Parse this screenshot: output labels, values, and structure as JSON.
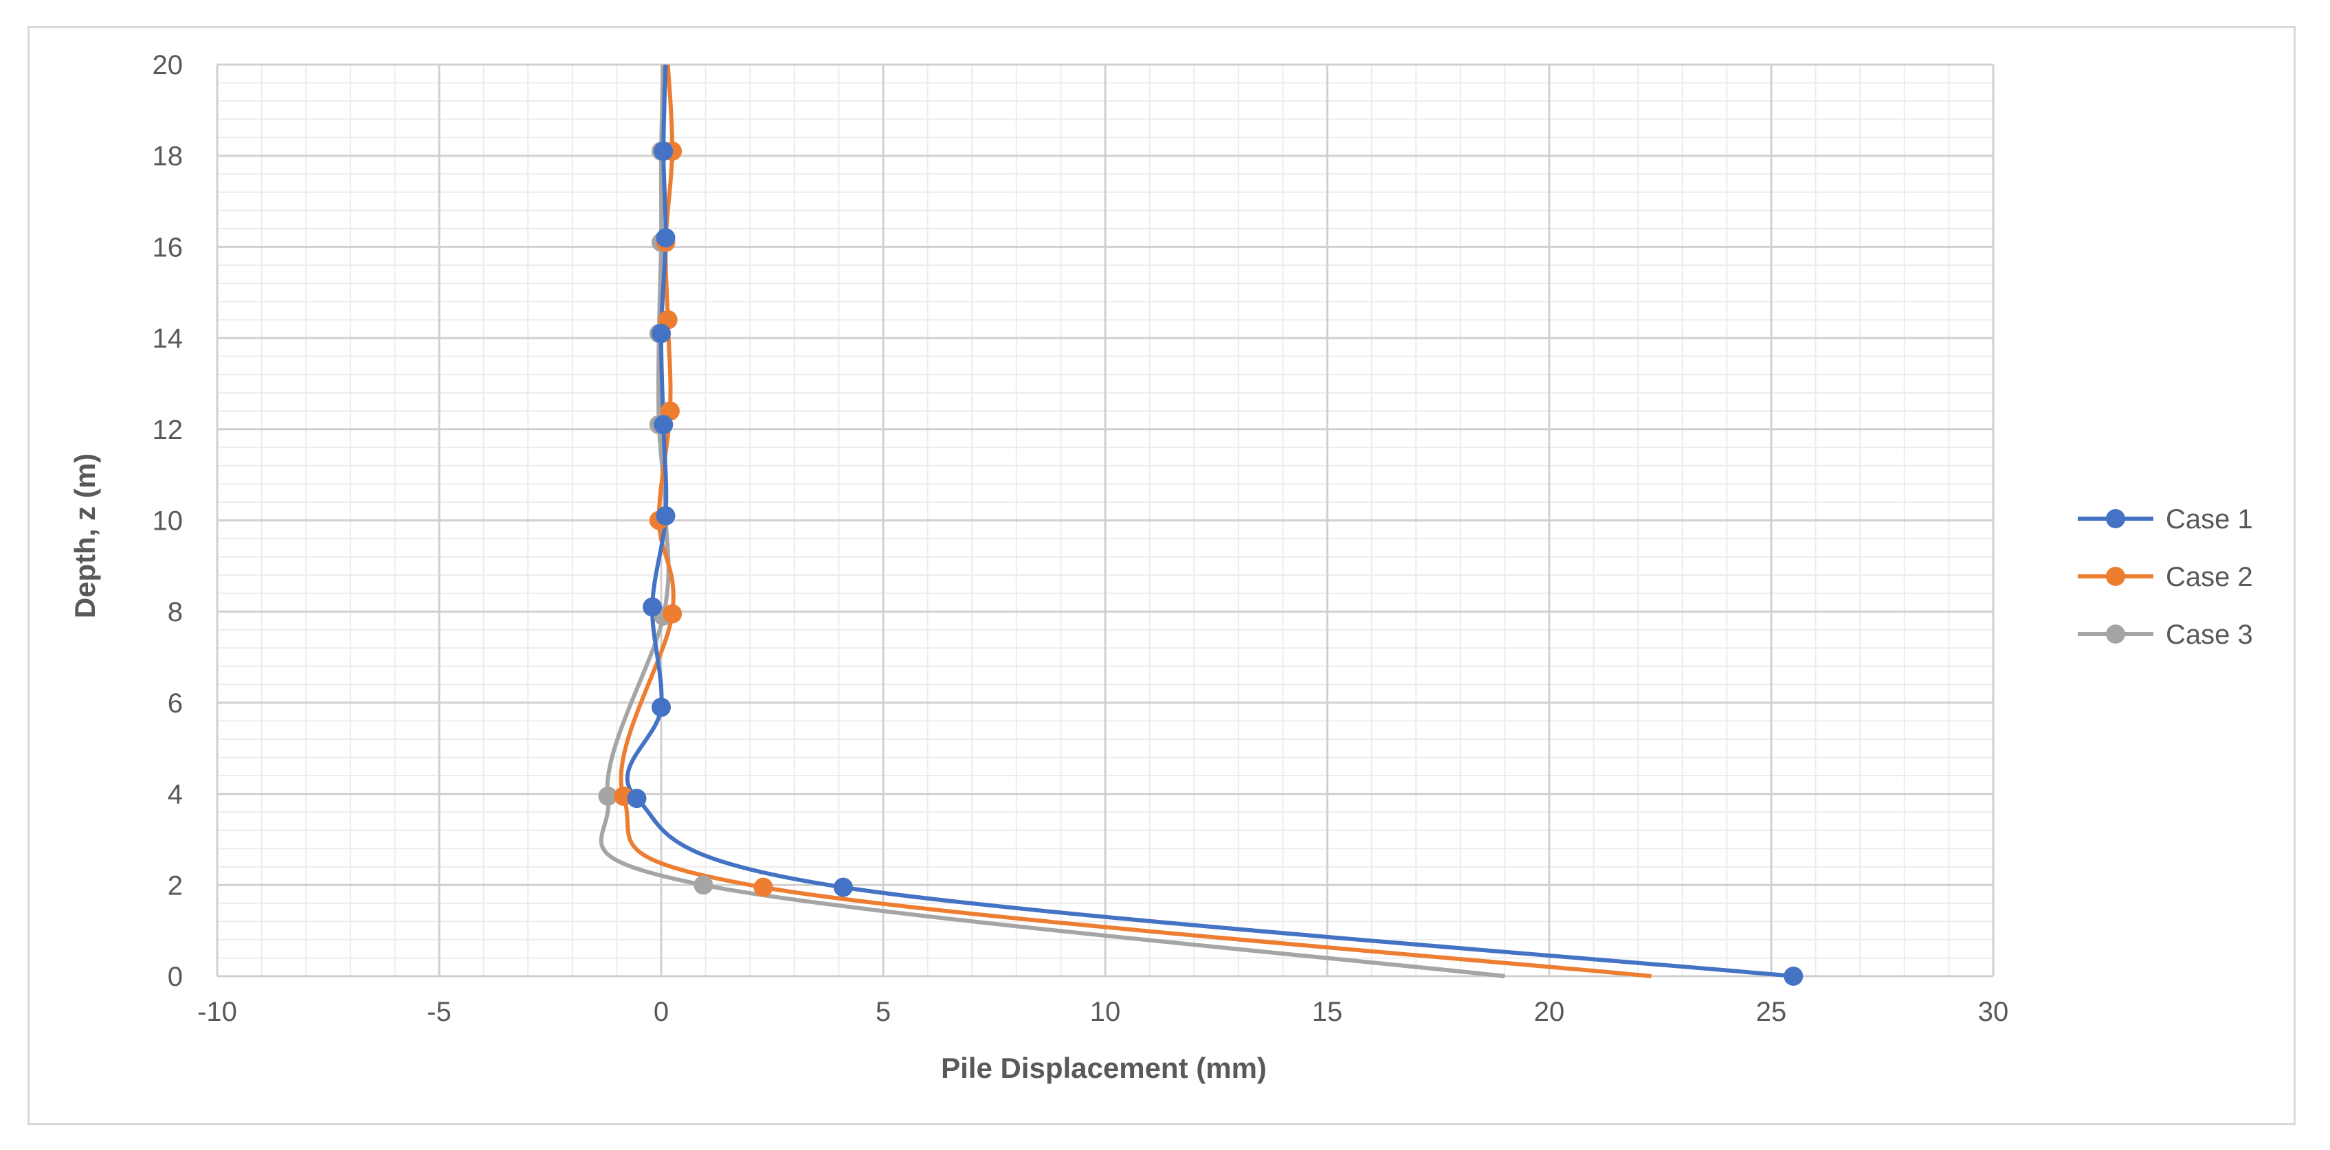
{
  "chart_data": {
    "type": "scatter",
    "xlabel": "Pile Displacement (mm)",
    "ylabel": "Depth, z (m)",
    "xlim": [
      -10,
      30
    ],
    "ylim": [
      0,
      20
    ],
    "x_ticks": [
      "-10",
      "-5",
      "0",
      "5",
      "10",
      "15",
      "20",
      "25",
      "30"
    ],
    "y_ticks": [
      "0",
      "2",
      "4",
      "6",
      "8",
      "10",
      "12",
      "14",
      "16",
      "18",
      "20"
    ],
    "grid": "major and minor",
    "legend_position": "right",
    "series": [
      {
        "name": "Case 1",
        "color": "#4472c4",
        "points": [
          [
            25.5,
            0
          ],
          [
            4.1,
            1.95
          ],
          [
            -0.55,
            3.9
          ],
          [
            0.0,
            5.9
          ],
          [
            -0.2,
            8.1
          ],
          [
            0.1,
            10.1
          ],
          [
            0.05,
            12.1
          ],
          [
            0.0,
            14.1
          ],
          [
            0.1,
            16.2
          ],
          [
            0.05,
            18.1
          ],
          [
            0.1,
            20
          ]
        ]
      },
      {
        "name": "Case 2",
        "color": "#ed7d31",
        "points": [
          [
            22.3,
            0
          ],
          [
            2.3,
            1.95
          ],
          [
            -0.85,
            3.95
          ],
          [
            0.25,
            7.95
          ],
          [
            -0.05,
            10.0
          ],
          [
            0.2,
            12.4
          ],
          [
            0.15,
            14.4
          ],
          [
            0.1,
            16.1
          ],
          [
            0.25,
            18.1
          ],
          [
            0.15,
            20
          ]
        ]
      },
      {
        "name": "Case 3",
        "color": "#a5a5a5",
        "points": [
          [
            19.0,
            0
          ],
          [
            0.95,
            2.0
          ],
          [
            -1.2,
            3.95
          ],
          [
            0.05,
            7.9
          ],
          [
            0.1,
            10.1
          ],
          [
            -0.05,
            12.1
          ],
          [
            -0.05,
            14.1
          ],
          [
            0.0,
            16.1
          ],
          [
            0.0,
            18.1
          ],
          [
            0.05,
            20
          ]
        ]
      }
    ]
  }
}
